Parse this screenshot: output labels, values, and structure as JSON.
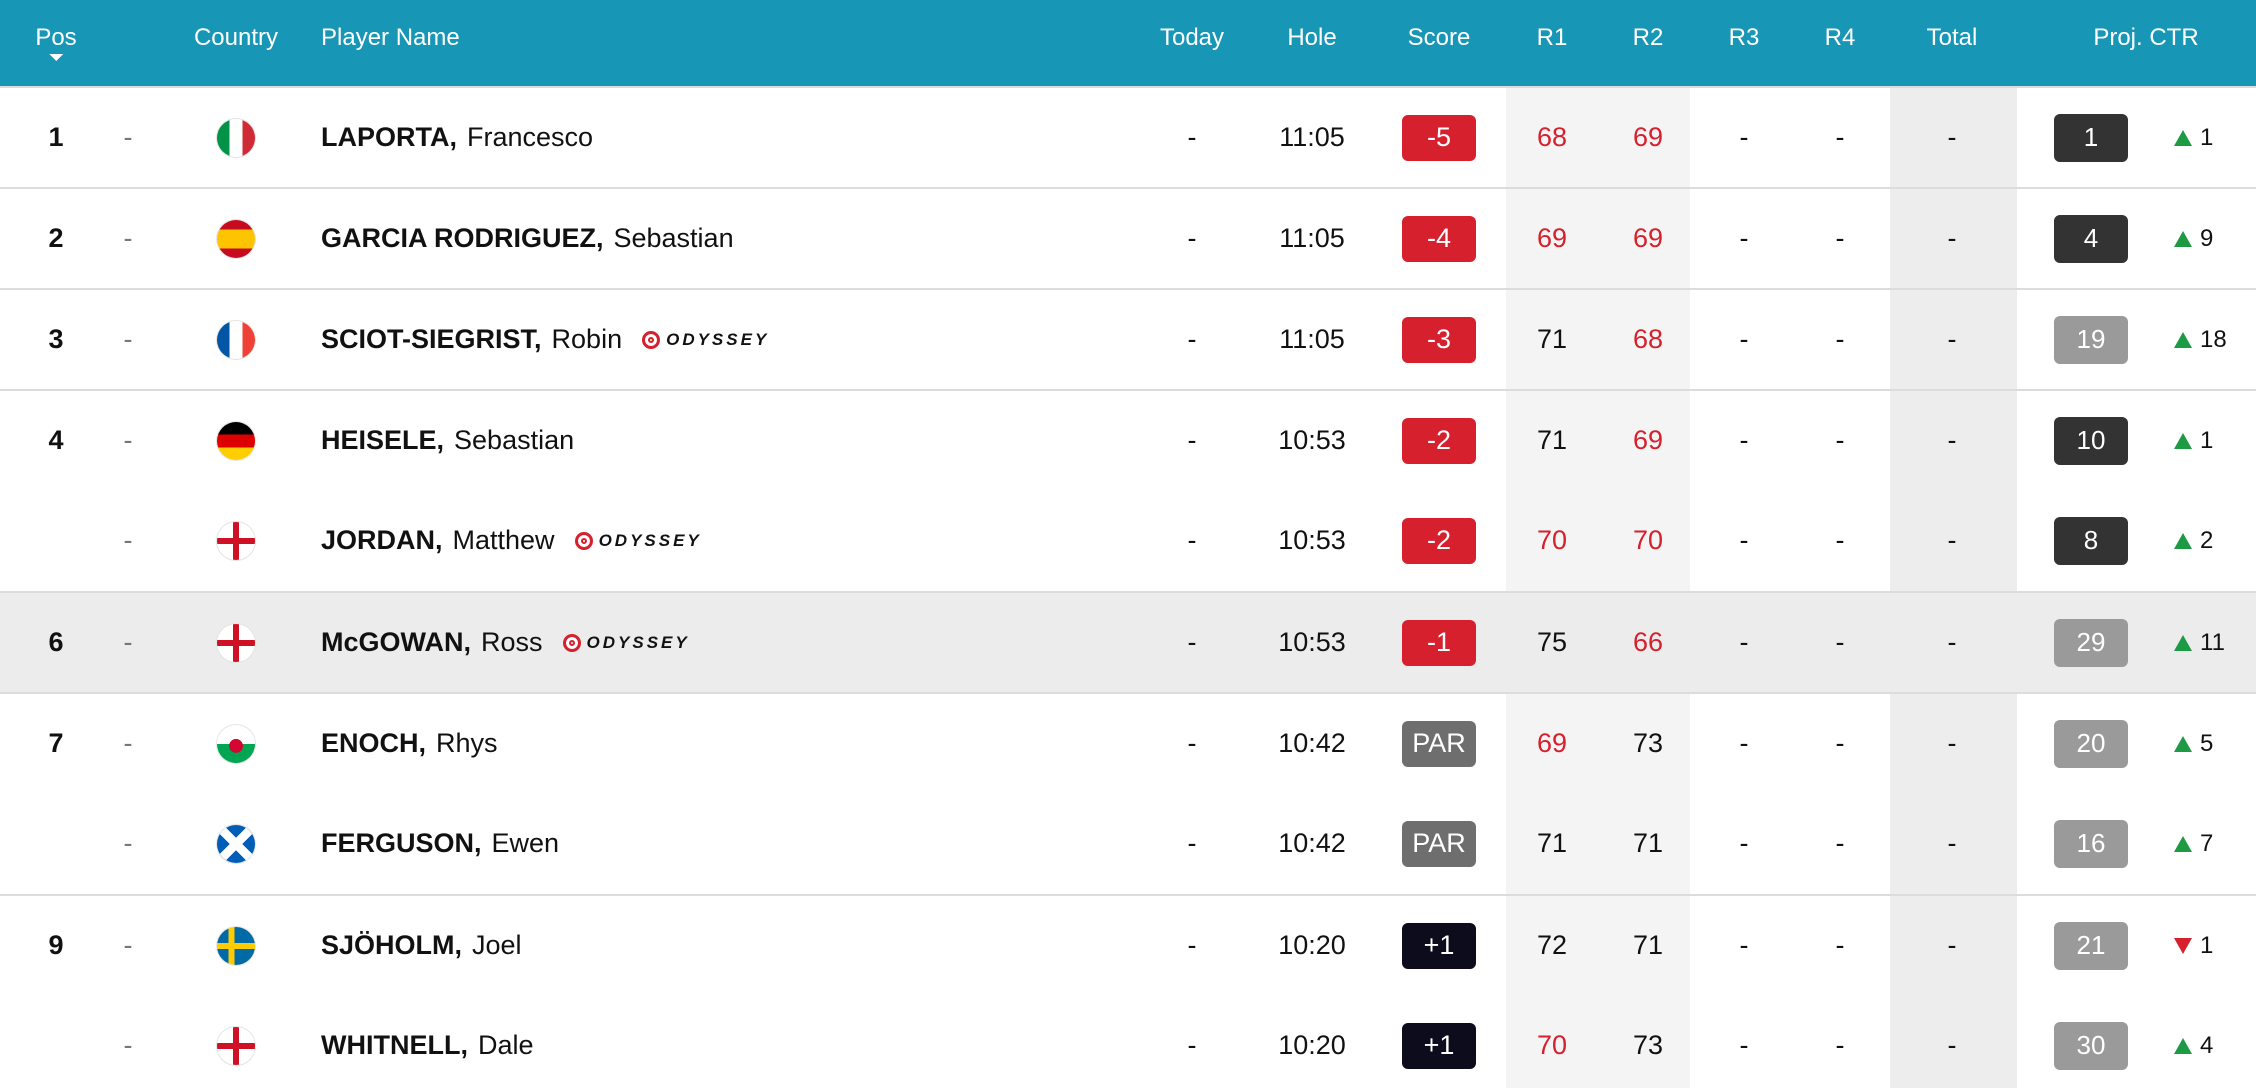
{
  "header": {
    "pos": "Pos",
    "country": "Country",
    "player_name": "Player Name",
    "today": "Today",
    "hole": "Hole",
    "score": "Score",
    "r1": "R1",
    "r2": "R2",
    "r3": "R3",
    "r4": "R4",
    "total": "Total",
    "proj_ctr": "Proj. CTR"
  },
  "colors": {
    "header_bg": "#1796b6",
    "under_par": "#d6202e",
    "par": "#6e6e6e",
    "over_par": "#0c0c1c",
    "up": "#1f9a44",
    "down": "#d6202e"
  },
  "rows": [
    {
      "pos": "1",
      "move": "-",
      "flag": "italy-flag-icon",
      "surname": "LAPORTA,",
      "firstname": "Francesco",
      "sponsor": "",
      "today": "-",
      "hole": "11:05",
      "score": "-5",
      "score_type": "under",
      "r1": "68",
      "r1_under": true,
      "r2": "69",
      "r2_under": true,
      "r3": "-",
      "r4": "-",
      "total": "-",
      "ctr": "1",
      "ctr_style": "dark",
      "ctr_dir": "up",
      "ctr_change": "1",
      "group_start": true,
      "highlight": false
    },
    {
      "pos": "2",
      "move": "-",
      "flag": "spain-flag-icon",
      "surname": "GARCIA RODRIGUEZ,",
      "firstname": "Sebastian",
      "sponsor": "",
      "today": "-",
      "hole": "11:05",
      "score": "-4",
      "score_type": "under",
      "r1": "69",
      "r1_under": true,
      "r2": "69",
      "r2_under": true,
      "r3": "-",
      "r4": "-",
      "total": "-",
      "ctr": "4",
      "ctr_style": "dark",
      "ctr_dir": "up",
      "ctr_change": "9",
      "group_start": true,
      "highlight": false
    },
    {
      "pos": "3",
      "move": "-",
      "flag": "france-flag-icon",
      "surname": "SCIOT-SIEGRIST,",
      "firstname": "Robin",
      "sponsor": "ODYSSEY",
      "today": "-",
      "hole": "11:05",
      "score": "-3",
      "score_type": "under",
      "r1": "71",
      "r1_under": false,
      "r2": "68",
      "r2_under": true,
      "r3": "-",
      "r4": "-",
      "total": "-",
      "ctr": "19",
      "ctr_style": "light",
      "ctr_dir": "up",
      "ctr_change": "18",
      "group_start": true,
      "highlight": false
    },
    {
      "pos": "4",
      "move": "-",
      "flag": "germany-flag-icon",
      "surname": "HEISELE,",
      "firstname": "Sebastian",
      "sponsor": "",
      "today": "-",
      "hole": "10:53",
      "score": "-2",
      "score_type": "under",
      "r1": "71",
      "r1_under": false,
      "r2": "69",
      "r2_under": true,
      "r3": "-",
      "r4": "-",
      "total": "-",
      "ctr": "10",
      "ctr_style": "dark",
      "ctr_dir": "up",
      "ctr_change": "1",
      "group_start": true,
      "highlight": false
    },
    {
      "pos": "",
      "move": "-",
      "flag": "england-flag-icon",
      "surname": "JORDAN,",
      "firstname": "Matthew",
      "sponsor": "ODYSSEY",
      "today": "-",
      "hole": "10:53",
      "score": "-2",
      "score_type": "under",
      "r1": "70",
      "r1_under": true,
      "r2": "70",
      "r2_under": true,
      "r3": "-",
      "r4": "-",
      "total": "-",
      "ctr": "8",
      "ctr_style": "dark",
      "ctr_dir": "up",
      "ctr_change": "2",
      "group_start": false,
      "highlight": false
    },
    {
      "pos": "6",
      "move": "-",
      "flag": "england-flag-icon",
      "surname": "McGOWAN,",
      "firstname": "Ross",
      "sponsor": "ODYSSEY",
      "today": "-",
      "hole": "10:53",
      "score": "-1",
      "score_type": "under",
      "r1": "75",
      "r1_under": false,
      "r2": "66",
      "r2_under": true,
      "r3": "-",
      "r4": "-",
      "total": "-",
      "ctr": "29",
      "ctr_style": "light",
      "ctr_dir": "up",
      "ctr_change": "11",
      "group_start": true,
      "highlight": true
    },
    {
      "pos": "7",
      "move": "-",
      "flag": "wales-flag-icon",
      "surname": "ENOCH,",
      "firstname": "Rhys",
      "sponsor": "",
      "today": "-",
      "hole": "10:42",
      "score": "PAR",
      "score_type": "par",
      "r1": "69",
      "r1_under": true,
      "r2": "73",
      "r2_under": false,
      "r3": "-",
      "r4": "-",
      "total": "-",
      "ctr": "20",
      "ctr_style": "light",
      "ctr_dir": "up",
      "ctr_change": "5",
      "group_start": true,
      "highlight": false
    },
    {
      "pos": "",
      "move": "-",
      "flag": "scotland-flag-icon",
      "surname": "FERGUSON,",
      "firstname": "Ewen",
      "sponsor": "",
      "today": "-",
      "hole": "10:42",
      "score": "PAR",
      "score_type": "par",
      "r1": "71",
      "r1_under": false,
      "r2": "71",
      "r2_under": false,
      "r3": "-",
      "r4": "-",
      "total": "-",
      "ctr": "16",
      "ctr_style": "light",
      "ctr_dir": "up",
      "ctr_change": "7",
      "group_start": false,
      "highlight": false
    },
    {
      "pos": "9",
      "move": "-",
      "flag": "sweden-flag-icon",
      "surname": "SJÖHOLM,",
      "firstname": "Joel",
      "sponsor": "",
      "today": "-",
      "hole": "10:20",
      "score": "+1",
      "score_type": "over",
      "r1": "72",
      "r1_under": false,
      "r2": "71",
      "r2_under": false,
      "r3": "-",
      "r4": "-",
      "total": "-",
      "ctr": "21",
      "ctr_style": "light",
      "ctr_dir": "down",
      "ctr_change": "1",
      "group_start": true,
      "highlight": false
    },
    {
      "pos": "",
      "move": "-",
      "flag": "england-flag-icon",
      "surname": "WHITNELL,",
      "firstname": "Dale",
      "sponsor": "",
      "today": "-",
      "hole": "10:20",
      "score": "+1",
      "score_type": "over",
      "r1": "70",
      "r1_under": true,
      "r2": "73",
      "r2_under": false,
      "r3": "-",
      "r4": "-",
      "total": "-",
      "ctr": "30",
      "ctr_style": "light",
      "ctr_dir": "up",
      "ctr_change": "4",
      "group_start": false,
      "highlight": false
    }
  ]
}
